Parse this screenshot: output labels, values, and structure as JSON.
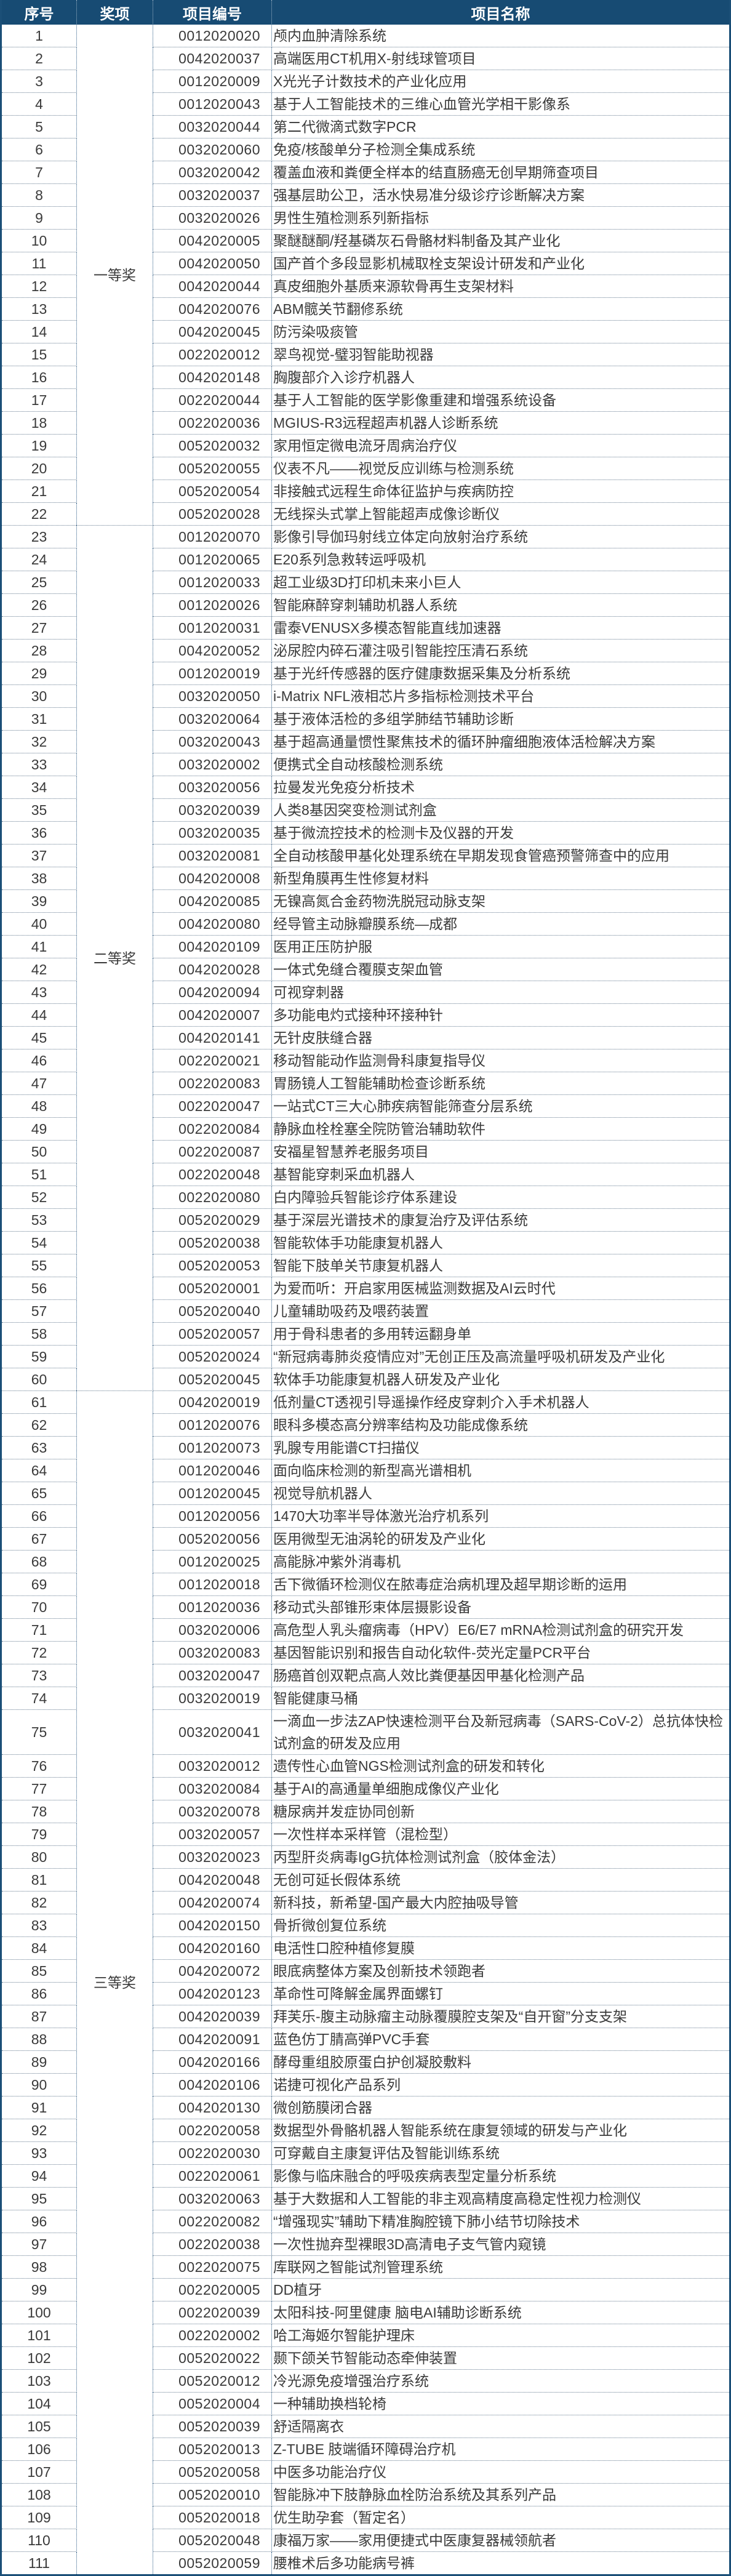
{
  "header": {
    "no": "序号",
    "award": "奖项",
    "code": "项目编号",
    "name": "项目名称"
  },
  "colors": {
    "header_bg": "#174b73",
    "border": "#1b4f77",
    "text": "#3a3a3a"
  },
  "awards": [
    {
      "label": "一等奖",
      "from": 1,
      "to": 22
    },
    {
      "label": "二等奖",
      "from": 23,
      "to": 60
    },
    {
      "label": "三等奖",
      "from": 61,
      "to": 111
    }
  ],
  "rows": [
    {
      "no": "1",
      "code": "0012020020",
      "name": "颅内血肿清除系统"
    },
    {
      "no": "2",
      "code": "0042020037",
      "name": "高端医用CT机用X-射线球管项目"
    },
    {
      "no": "3",
      "code": "0012020009",
      "name": "X光光子计数技术的产业化应用"
    },
    {
      "no": "4",
      "code": "0012020043",
      "name": "基于人工智能技术的三维心血管光学相干影像系"
    },
    {
      "no": "5",
      "code": "0032020044",
      "name": "第二代微滴式数字PCR"
    },
    {
      "no": "6",
      "code": "0032020060",
      "name": "免疫/核酸单分子检测全集成系统"
    },
    {
      "no": "7",
      "code": "0032020042",
      "name": "覆盖血液和粪便全样本的结直肠癌无创早期筛查项目"
    },
    {
      "no": "8",
      "code": "0032020037",
      "name": "强基层助公卫，活水快易准分级诊疗诊断解决方案"
    },
    {
      "no": "9",
      "code": "0032020026",
      "name": "男性生殖检测系列新指标"
    },
    {
      "no": "10",
      "code": "0042020005",
      "name": "聚醚醚酮/羟基磷灰石骨骼材料制备及其产业化"
    },
    {
      "no": "11",
      "code": "0042020050",
      "name": "国产首个多段显影机械取栓支架设计研发和产业化"
    },
    {
      "no": "12",
      "code": "0042020044",
      "name": "真皮细胞外基质来源软骨再生支架材料"
    },
    {
      "no": "13",
      "code": "0042020076",
      "name": "ABM髋关节翻修系统"
    },
    {
      "no": "14",
      "code": "0042020045",
      "name": "防污染吸痰管"
    },
    {
      "no": "15",
      "code": "0022020012",
      "name": "翠鸟视觉-璧羽智能助视器"
    },
    {
      "no": "16",
      "code": "0042020148",
      "name": "胸腹部介入诊疗机器人"
    },
    {
      "no": "17",
      "code": "0022020044",
      "name": "基于人工智能的医学影像重建和增强系统设备"
    },
    {
      "no": "18",
      "code": "0022020036",
      "name": "MGIUS-R3远程超声机器人诊断系统"
    },
    {
      "no": "19",
      "code": "0052020032",
      "name": "家用恒定微电流牙周病治疗仪"
    },
    {
      "no": "20",
      "code": "0052020055",
      "name": "仪表不凡——视觉反应训练与检测系统"
    },
    {
      "no": "21",
      "code": "0052020054",
      "name": "非接触式远程生命体征监护与疾病防控"
    },
    {
      "no": "22",
      "code": "0052020028",
      "name": "无线探头式掌上智能超声成像诊断仪"
    },
    {
      "no": "23",
      "code": "0012020070",
      "name": "影像引导伽玛射线立体定向放射治疗系统"
    },
    {
      "no": "24",
      "code": "0012020065",
      "name": "E20系列急救转运呼吸机"
    },
    {
      "no": "25",
      "code": "0012020033",
      "name": "超工业级3D打印机未来小巨人"
    },
    {
      "no": "26",
      "code": "0012020026",
      "name": "智能麻醉穿刺辅助机器人系统"
    },
    {
      "no": "27",
      "code": "0012020031",
      "name": "雷泰VENUSX多模态智能直线加速器"
    },
    {
      "no": "28",
      "code": "0042020052",
      "name": "泌尿腔内碎石灌注吸引智能控压清石系统"
    },
    {
      "no": "29",
      "code": "0012020019",
      "name": "基于光纤传感器的医疗健康数据采集及分析系统"
    },
    {
      "no": "30",
      "code": "0032020050",
      "name": "i-Matrix NFL液相芯片多指标检测技术平台"
    },
    {
      "no": "31",
      "code": "0032020064",
      "name": "基于液体活检的多组学肺结节辅助诊断"
    },
    {
      "no": "32",
      "code": "0032020043",
      "name": "基于超高通量惯性聚焦技术的循环肿瘤细胞液体活检解决方案"
    },
    {
      "no": "33",
      "code": "0032020002",
      "name": "便携式全自动核酸检测系统"
    },
    {
      "no": "34",
      "code": "0032020056",
      "name": "拉曼发光免疫分析技术"
    },
    {
      "no": "35",
      "code": "0032020039",
      "name": "人类8基因突变检测试剂盒"
    },
    {
      "no": "36",
      "code": "0032020035",
      "name": "基于微流控技术的检测卡及仪器的开发"
    },
    {
      "no": "37",
      "code": "0032020081",
      "name": "全自动核酸甲基化处理系统在早期发现食管癌预警筛查中的应用"
    },
    {
      "no": "38",
      "code": "0042020008",
      "name": "新型角膜再生性修复材料"
    },
    {
      "no": "39",
      "code": "0042020085",
      "name": "无镍高氮合金药物洗脱冠动脉支架"
    },
    {
      "no": "40",
      "code": "0042020080",
      "name": "经导管主动脉瓣膜系统—成都"
    },
    {
      "no": "41",
      "code": "0042020109",
      "name": "医用正压防护服"
    },
    {
      "no": "42",
      "code": "0042020028",
      "name": "一体式免缝合覆膜支架血管"
    },
    {
      "no": "43",
      "code": "0042020094",
      "name": "可视穿刺器"
    },
    {
      "no": "44",
      "code": "0042020007",
      "name": "多功能电灼式接种环接种针"
    },
    {
      "no": "45",
      "code": "0042020141",
      "name": "无针皮肤缝合器"
    },
    {
      "no": "46",
      "code": "0022020021",
      "name": "移动智能动作监测骨科康复指导仪"
    },
    {
      "no": "47",
      "code": "0022020083",
      "name": "胃肠镜人工智能辅助检查诊断系统"
    },
    {
      "no": "48",
      "code": "0022020047",
      "name": "一站式CT三大心肺疾病智能筛查分层系统"
    },
    {
      "no": "49",
      "code": "0022020084",
      "name": "静脉血栓栓塞全院防管治辅助软件"
    },
    {
      "no": "50",
      "code": "0022020087",
      "name": "安福星智慧养老服务项目"
    },
    {
      "no": "51",
      "code": "0022020048",
      "name": "基智能穿刺采血机器人"
    },
    {
      "no": "52",
      "code": "0022020080",
      "name": "白内障验兵智能诊疗体系建设"
    },
    {
      "no": "53",
      "code": "0052020029",
      "name": "基于深层光谱技术的康复治疗及评估系统"
    },
    {
      "no": "54",
      "code": "0052020038",
      "name": "智能软体手功能康复机器人"
    },
    {
      "no": "55",
      "code": "0052020053",
      "name": "智能下肢单关节康复机器人"
    },
    {
      "no": "56",
      "code": "0052020001",
      "name": "为爱而听：开启家用医械监测数据及AI云时代"
    },
    {
      "no": "57",
      "code": "0052020040",
      "name": "儿童辅助吸药及喂药装置"
    },
    {
      "no": "58",
      "code": "0052020057",
      "name": "用于骨科患者的多用转运翻身单"
    },
    {
      "no": "59",
      "code": "0052020024",
      "name": "“新冠病毒肺炎疫情应对”无创正压及高流量呼吸机研发及产业化"
    },
    {
      "no": "60",
      "code": "0052020045",
      "name": "软体手功能康复机器人研发及产业化"
    },
    {
      "no": "61",
      "code": "0042020019",
      "name": "低剂量CT透视引导遥操作经皮穿刺介入手术机器人"
    },
    {
      "no": "62",
      "code": "0012020076",
      "name": "眼科多模态高分辨率结构及功能成像系统"
    },
    {
      "no": "63",
      "code": "0012020073",
      "name": "乳腺专用能谱CT扫描仪"
    },
    {
      "no": "64",
      "code": "0012020046",
      "name": "面向临床检测的新型高光谱相机"
    },
    {
      "no": "65",
      "code": "0012020045",
      "name": "视觉导航机器人"
    },
    {
      "no": "66",
      "code": "0012020056",
      "name": "1470大功率半导体激光治疗机系列"
    },
    {
      "no": "67",
      "code": "0052020056",
      "name": "医用微型无油涡轮的研发及产业化"
    },
    {
      "no": "68",
      "code": "0012020025",
      "name": "高能脉冲紫外消毒机"
    },
    {
      "no": "69",
      "code": "0012020018",
      "name": "舌下微循环检测仪在脓毒症治病机理及超早期诊断的运用"
    },
    {
      "no": "70",
      "code": "0012020036",
      "name": "移动式头部锥形束体层摄影设备"
    },
    {
      "no": "71",
      "code": "0032020006",
      "name": "高危型人乳头瘤病毒（HPV）E6/E7 mRNA检测试剂盒的研究开发"
    },
    {
      "no": "72",
      "code": "0032020083",
      "name": "基因智能识别和报告自动化软件-荧光定量PCR平台"
    },
    {
      "no": "73",
      "code": "0032020047",
      "name": "肠癌首创双靶点高人效比粪便基因甲基化检测产品"
    },
    {
      "no": "74",
      "code": "0032020019",
      "name": "智能健康马桶"
    },
    {
      "no": "75",
      "code": "0032020041",
      "name": "一滴血一步法ZAP快速检测平台及新冠病毒（SARS-CoV-2）总抗体快检试剂盒的研发及应用"
    },
    {
      "no": "76",
      "code": "0032020012",
      "name": "遗传性心血管NGS检测试剂盒的研发和转化"
    },
    {
      "no": "77",
      "code": "0032020084",
      "name": "基于AI的高通量单细胞成像仪产业化"
    },
    {
      "no": "78",
      "code": "0032020078",
      "name": "糖尿病并发症协同创新"
    },
    {
      "no": "79",
      "code": "0032020057",
      "name": "一次性样本采样管（混检型）"
    },
    {
      "no": "80",
      "code": "0032020023",
      "name": "丙型肝炎病毒IgG抗体检测试剂盒（胶体金法）"
    },
    {
      "no": "81",
      "code": "0042020048",
      "name": "无创可延长假体系统"
    },
    {
      "no": "82",
      "code": "0042020074",
      "name": "新科技，新希望-国产最大内腔抽吸导管"
    },
    {
      "no": "83",
      "code": "0042020150",
      "name": "骨折微创复位系统"
    },
    {
      "no": "84",
      "code": "0042020160",
      "name": "电活性口腔种植修复膜"
    },
    {
      "no": "85",
      "code": "0042020072",
      "name": "眼底病整体方案及创新技术领跑者"
    },
    {
      "no": "86",
      "code": "0042020123",
      "name": "革命性可降解金属界面螺钉"
    },
    {
      "no": "87",
      "code": "0042020039",
      "name": "拜芙乐-腹主动脉瘤主动脉覆膜腔支架及“自开窗”分支支架"
    },
    {
      "no": "88",
      "code": "0042020091",
      "name": "蓝色仿丁腈高弹PVC手套"
    },
    {
      "no": "89",
      "code": "0042020166",
      "name": "酵母重组胶原蛋白护创凝胶敷料"
    },
    {
      "no": "90",
      "code": "0042020106",
      "name": "诺捷可视化产品系列"
    },
    {
      "no": "91",
      "code": "0042020130",
      "name": "微创筋膜闭合器"
    },
    {
      "no": "92",
      "code": "0022020058",
      "name": "数据型外骨骼机器人智能系统在康复领域的研发与产业化"
    },
    {
      "no": "93",
      "code": "0022020030",
      "name": "可穿戴自主康复评估及智能训练系统"
    },
    {
      "no": "94",
      "code": "0022020061",
      "name": "影像与临床融合的呼吸疾病表型定量分析系统"
    },
    {
      "no": "95",
      "code": "0032020063",
      "name": "基于大数据和人工智能的非主观高精度高稳定性视力检测仪"
    },
    {
      "no": "96",
      "code": "0022020082",
      "name": "“增强现实”辅助下精准胸腔镜下肺小结节切除技术"
    },
    {
      "no": "97",
      "code": "0022020038",
      "name": "一次性抛弃型裸眼3D高清电子支气管内窥镜"
    },
    {
      "no": "98",
      "code": "0022020075",
      "name": "库联网之智能试剂管理系统"
    },
    {
      "no": "99",
      "code": "0022020005",
      "name": "DD植牙"
    },
    {
      "no": "100",
      "code": "0022020039",
      "name": "太阳科技-阿里健康 脑电AI辅助诊断系统"
    },
    {
      "no": "101",
      "code": "0022020002",
      "name": "哈工海姬尔智能护理床"
    },
    {
      "no": "102",
      "code": "0052020022",
      "name": "颞下颌关节智能动态牵伸装置"
    },
    {
      "no": "103",
      "code": "0052020012",
      "name": "冷光源免疫增强治疗系统"
    },
    {
      "no": "104",
      "code": "0052020004",
      "name": "一种辅助换档轮椅"
    },
    {
      "no": "105",
      "code": "0052020039",
      "name": "舒适隔离衣"
    },
    {
      "no": "106",
      "code": "0052020013",
      "name": "Z-TUBE 肢端循环障碍治疗机"
    },
    {
      "no": "107",
      "code": "0052020058",
      "name": "中医多功能治疗仪"
    },
    {
      "no": "108",
      "code": "0052020010",
      "name": "智能脉冲下肢静脉血栓防治系统及其系列产品"
    },
    {
      "no": "109",
      "code": "0052020018",
      "name": "优生助孕套（暂定名）"
    },
    {
      "no": "110",
      "code": "0052020048",
      "name": "康福万家——家用便捷式中医康复器械领航者"
    },
    {
      "no": "111",
      "code": "0052020059",
      "name": "腰椎术后多功能病号裤"
    }
  ]
}
